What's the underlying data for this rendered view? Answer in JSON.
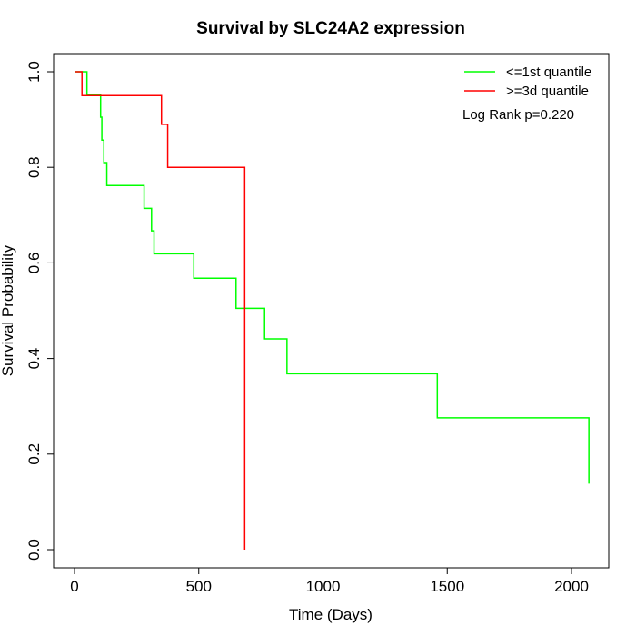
{
  "chart_data": {
    "type": "line",
    "step": true,
    "title": "Survival by SLC24A2 expression",
    "xlabel": "Time (Days)",
    "ylabel": "Survival Probability",
    "xlim": [
      0,
      2130
    ],
    "ylim": [
      0,
      1.0
    ],
    "xticks": [
      "0",
      "500",
      "1000",
      "1500",
      "2000"
    ],
    "yticks": [
      "0.0",
      "0.2",
      "0.4",
      "0.6",
      "0.8",
      "1.0"
    ],
    "legend_position": "top-right",
    "annotation": "Log Rank p=0.220",
    "series": [
      {
        "name": "<=1st quantile",
        "color": "#00ff00",
        "x": [
          0,
          50,
          105,
          110,
          118,
          130,
          135,
          280,
          310,
          320,
          480,
          650,
          765,
          855,
          1460,
          2070
        ],
        "y": [
          1.0,
          0.952,
          0.905,
          0.857,
          0.81,
          0.762,
          0.762,
          0.714,
          0.667,
          0.619,
          0.568,
          0.505,
          0.441,
          0.368,
          0.276,
          0.138
        ]
      },
      {
        "name": ">=3d quantile",
        "color": "#ff0000",
        "x": [
          0,
          30,
          350,
          375,
          685,
          685
        ],
        "y": [
          1.0,
          0.95,
          0.89,
          0.8,
          0.8,
          0.0
        ]
      }
    ]
  }
}
